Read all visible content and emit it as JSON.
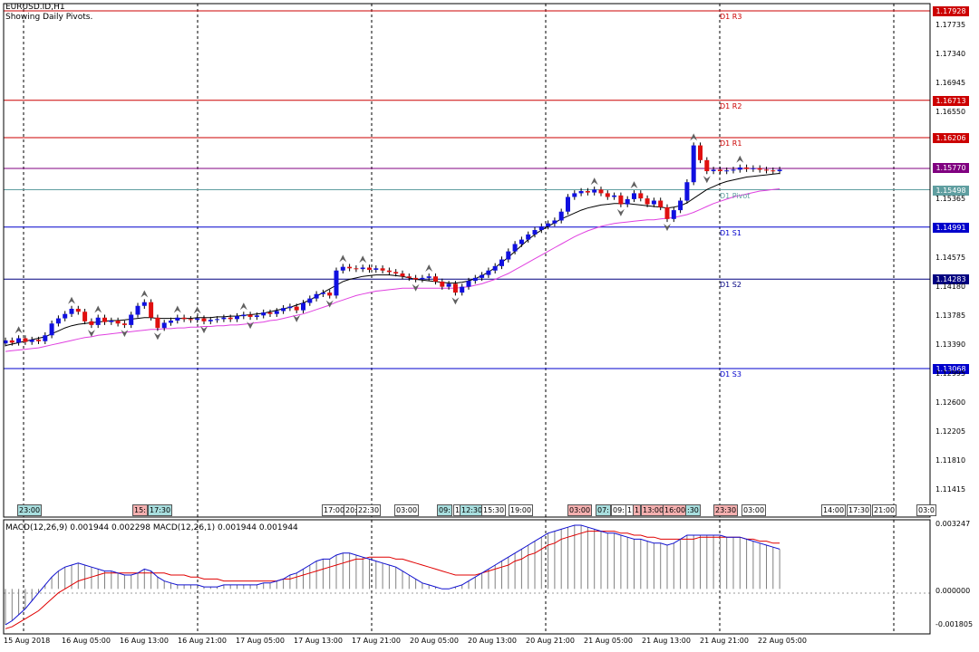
{
  "chart": {
    "symbol_line": "EURUSD.ID,H1",
    "subtitle": "Showing Daily Pivots.",
    "current_price": "1.15770",
    "pivots": [
      {
        "label": "D1 R3",
        "value": "1.17928",
        "color": "#cc0000"
      },
      {
        "label": "D1 R2",
        "value": "1.16713",
        "color": "#cc0000"
      },
      {
        "label": "D1 R1",
        "value": "1.16206",
        "color": "#cc0000"
      },
      {
        "label": "D1 Pivot",
        "value": "1.15498",
        "color": "#5f9ea0"
      },
      {
        "label": "D1 S1",
        "value": "1.14991",
        "color": "#0000cc"
      },
      {
        "label": "D1 S2",
        "value": "1.14283",
        "color": "#000080"
      },
      {
        "label": "D1 S3",
        "value": "1.13068",
        "color": "#0000cc"
      }
    ],
    "price_axis": [
      "1.17735",
      "1.17340",
      "1.16945",
      "1.16550",
      "1.15365",
      "1.14575",
      "1.14180",
      "1.13785",
      "1.13390",
      "1.12995",
      "1.12600",
      "1.12205",
      "1.11810",
      "1.11415"
    ],
    "sessions": [
      {
        "text": "23:00",
        "color": "#a8dede"
      },
      {
        "text": "15:",
        "color": "#f4b0b0"
      },
      {
        "text": "17:30",
        "color": "#a8dede"
      },
      {
        "text": "17:00",
        "color": "#ffffff"
      },
      {
        "text": "20:",
        "color": "#ffffff"
      },
      {
        "text": "22:30",
        "color": "#ffffff"
      },
      {
        "text": "03:00",
        "color": "#ffffff"
      },
      {
        "text": "09:",
        "color": "#a8dede"
      },
      {
        "text": "1",
        "color": "#ffffff"
      },
      {
        "text": "12:30",
        "color": "#a8dede"
      },
      {
        "text": "15:30",
        "color": "#ffffff"
      },
      {
        "text": "19:00",
        "color": "#ffffff"
      },
      {
        "text": "03:00",
        "color": "#f4b0b0"
      },
      {
        "text": "07:",
        "color": "#a8dede"
      },
      {
        "text": "09:",
        "color": "#ffffff"
      },
      {
        "text": "1",
        "color": "#ffffff"
      },
      {
        "text": "1",
        "color": "#f4b0b0"
      },
      {
        "text": "13:00",
        "color": "#f4b0b0"
      },
      {
        "text": "16:00",
        "color": "#f4b0b0"
      },
      {
        "text": ":30",
        "color": "#a8dede"
      },
      {
        "text": "23:30",
        "color": "#f4b0b0"
      },
      {
        "text": "03:00",
        "color": "#ffffff"
      },
      {
        "text": "14:00",
        "color": "#ffffff"
      },
      {
        "text": "17:30",
        "color": "#ffffff"
      },
      {
        "text": "21:00",
        "color": "#ffffff"
      },
      {
        "text": "03:0",
        "color": "#ffffff"
      }
    ],
    "time_axis": [
      "15 Aug 2018",
      "16 Aug 05:00",
      "16 Aug 13:00",
      "16 Aug 21:00",
      "17 Aug 05:00",
      "17 Aug 13:00",
      "17 Aug 21:00",
      "20 Aug 05:00",
      "20 Aug 13:00",
      "20 Aug 21:00",
      "21 Aug 05:00",
      "21 Aug 13:00",
      "21 Aug 21:00",
      "22 Aug 05:00"
    ]
  },
  "macd": {
    "header": "MACD(12,26,9) 0.001944 0.002298 MACD(12,26,1) 0.001944 0.001944",
    "axis": [
      "0.003247",
      "0.000000",
      "-0.001805"
    ]
  },
  "chart_data": {
    "type": "candlestick",
    "ohlc_y_range": [
      1.11,
      1.1805
    ],
    "closes": [
      1.1345,
      1.1342,
      1.1348,
      1.1343,
      1.1346,
      1.1344,
      1.1352,
      1.1368,
      1.1375,
      1.1381,
      1.1388,
      1.1384,
      1.1371,
      1.1366,
      1.1376,
      1.137,
      1.1372,
      1.1368,
      1.1366,
      1.138,
      1.1392,
      1.1397,
      1.1376,
      1.1362,
      1.1369,
      1.1372,
      1.1376,
      1.1374,
      1.1373,
      1.1375,
      1.1371,
      1.1373,
      1.1374,
      1.1376,
      1.1374,
      1.1378,
      1.138,
      1.1377,
      1.1379,
      1.1383,
      1.1381,
      1.1385,
      1.1389,
      1.1391,
      1.1386,
      1.1396,
      1.1402,
      1.1408,
      1.141,
      1.1406,
      1.144,
      1.1445,
      1.1443,
      1.1442,
      1.1444,
      1.1441,
      1.1443,
      1.144,
      1.1438,
      1.1436,
      1.1432,
      1.143,
      1.1428,
      1.143,
      1.1432,
      1.1425,
      1.1418,
      1.1422,
      1.141,
      1.1418,
      1.1426,
      1.143,
      1.1434,
      1.144,
      1.1446,
      1.1455,
      1.1466,
      1.1476,
      1.1482,
      1.1489,
      1.1495,
      1.15,
      1.1504,
      1.1508,
      1.152,
      1.154,
      1.1545,
      1.1548,
      1.1546,
      1.155,
      1.1545,
      1.154,
      1.1542,
      1.153,
      1.1537,
      1.1545,
      1.1538,
      1.153,
      1.1535,
      1.1526,
      1.151,
      1.1522,
      1.1535,
      1.156,
      1.161,
      1.159,
      1.1575,
      1.1577,
      1.1575,
      1.1576,
      1.1577,
      1.158,
      1.1578,
      1.1579,
      1.1577,
      1.1576,
      1.1575,
      1.1577
    ],
    "ma_fast": [
      1.1338,
      1.134,
      1.1342,
      1.1344,
      1.1346,
      1.1348,
      1.135,
      1.1354,
      1.1358,
      1.1362,
      1.1365,
      1.1367,
      1.1368,
      1.1369,
      1.137,
      1.1371,
      1.1372,
      1.1372,
      1.1373,
      1.1374,
      1.1375,
      1.1376,
      1.1376,
      1.1375,
      1.1375,
      1.1375,
      1.1375,
      1.1375,
      1.1375,
      1.1376,
      1.1376,
      1.1376,
      1.1377,
      1.1377,
      1.1378,
      1.1378,
      1.1379,
      1.138,
      1.1381,
      1.1382,
      1.1384,
      1.1386,
      1.1388,
      1.139,
      1.1393,
      1.1396,
      1.14,
      1.1405,
      1.141,
      1.1415,
      1.142,
      1.1425,
      1.1428,
      1.143,
      1.1432,
      1.1433,
      1.1434,
      1.1434,
      1.1434,
      1.1433,
      1.1432,
      1.143,
      1.1428,
      1.1427,
      1.1426,
      1.1425,
      1.1424,
      1.1423,
      1.1423,
      1.1424,
      1.1426,
      1.1429,
      1.1433,
      1.1438,
      1.1444,
      1.1451,
      1.1458,
      1.1466,
      1.1474,
      1.1482,
      1.1489,
      1.1495,
      1.15,
      1.1505,
      1.151,
      1.1514,
      1.1518,
      1.1522,
      1.1525,
      1.1527,
      1.1529,
      1.153,
      1.1531,
      1.1531,
      1.1531,
      1.153,
      1.1529,
      1.1528,
      1.1527,
      1.1526,
      1.1525,
      1.1526,
      1.1528,
      1.1532,
      1.1538,
      1.1544,
      1.155,
      1.1554,
      1.1558,
      1.1561,
      1.1563,
      1.1565,
      1.1567,
      1.1568,
      1.1569,
      1.157,
      1.1571,
      1.1572
    ],
    "ma_slow": [
      1.133,
      1.1331,
      1.1332,
      1.1333,
      1.1334,
      1.1335,
      1.1337,
      1.1339,
      1.1341,
      1.1343,
      1.1345,
      1.1347,
      1.1349,
      1.135,
      1.1352,
      1.1353,
      1.1354,
      1.1355,
      1.1356,
      1.1357,
      1.1358,
      1.1359,
      1.136,
      1.136,
      1.1361,
      1.1361,
      1.1362,
      1.1362,
      1.1363,
      1.1363,
      1.1364,
      1.1364,
      1.1365,
      1.1365,
      1.1366,
      1.1366,
      1.1367,
      1.1368,
      1.1369,
      1.137,
      1.1372,
      1.1373,
      1.1375,
      1.1377,
      1.1379,
      1.1381,
      1.1384,
      1.1387,
      1.139,
      1.1393,
      1.1397,
      1.14,
      1.1403,
      1.1406,
      1.1408,
      1.141,
      1.1412,
      1.1413,
      1.1414,
      1.1415,
      1.1416,
      1.1416,
      1.1416,
      1.1416,
      1.1416,
      1.1416,
      1.1416,
      1.1416,
      1.1416,
      1.1417,
      1.1418,
      1.142,
      1.1422,
      1.1425,
      1.1428,
      1.1432,
      1.1436,
      1.1441,
      1.1446,
      1.1451,
      1.1456,
      1.1461,
      1.1466,
      1.1471,
      1.1476,
      1.1481,
      1.1486,
      1.149,
      1.1494,
      1.1497,
      1.15,
      1.1502,
      1.1504,
      1.1505,
      1.1506,
      1.1507,
      1.1508,
      1.1509,
      1.1509,
      1.151,
      1.1511,
      1.1512,
      1.1514,
      1.1516,
      1.1519,
      1.1523,
      1.1527,
      1.1531,
      1.1534,
      1.1537,
      1.154,
      1.1542,
      1.1544,
      1.1546,
      1.1548,
      1.1549,
      1.155,
      1.1551
    ],
    "macd_range": [
      -0.001805,
      0.003247
    ],
    "macd_line": [
      -0.0018,
      -0.0016,
      -0.0013,
      -0.001,
      -0.0006,
      -0.0002,
      0.0002,
      0.0006,
      0.0009,
      0.0011,
      0.0012,
      0.0013,
      0.0012,
      0.0011,
      0.001,
      0.0009,
      0.0009,
      0.0008,
      0.0007,
      0.0007,
      0.0008,
      0.001,
      0.0009,
      0.0006,
      0.0004,
      0.0003,
      0.0002,
      0.0002,
      0.0002,
      0.0002,
      0.0001,
      0.0001,
      0.0001,
      0.0002,
      0.0002,
      0.0002,
      0.0002,
      0.0002,
      0.0002,
      0.0003,
      0.0003,
      0.0004,
      0.0005,
      0.0007,
      0.0008,
      0.001,
      0.0012,
      0.0014,
      0.0015,
      0.0015,
      0.0017,
      0.0018,
      0.0018,
      0.0017,
      0.0016,
      0.0015,
      0.0014,
      0.0013,
      0.0012,
      0.0011,
      0.0009,
      0.0007,
      0.0005,
      0.0003,
      0.0002,
      0.0001,
      0.0,
      0.0,
      0.0001,
      0.0002,
      0.0004,
      0.0006,
      0.0008,
      0.001,
      0.0012,
      0.0014,
      0.0016,
      0.0018,
      0.002,
      0.0022,
      0.0024,
      0.0026,
      0.0028,
      0.0029,
      0.003,
      0.0031,
      0.0032,
      0.0032,
      0.0031,
      0.003,
      0.0029,
      0.0028,
      0.0028,
      0.0027,
      0.0026,
      0.0025,
      0.0025,
      0.0024,
      0.0023,
      0.0023,
      0.0022,
      0.0023,
      0.0025,
      0.0027,
      0.0027,
      0.0027,
      0.0027,
      0.0027,
      0.0027,
      0.0026,
      0.0026,
      0.0026,
      0.0025,
      0.0024,
      0.0023,
      0.0022,
      0.0021,
      0.002
    ],
    "macd_signal": [
      -0.002,
      -0.0019,
      -0.0017,
      -0.0015,
      -0.0013,
      -0.0011,
      -0.0008,
      -0.0005,
      -0.0002,
      0.0,
      0.0002,
      0.0004,
      0.0005,
      0.0006,
      0.0007,
      0.0008,
      0.0008,
      0.0008,
      0.0008,
      0.0008,
      0.0008,
      0.0008,
      0.0008,
      0.0008,
      0.0008,
      0.0007,
      0.0007,
      0.0007,
      0.0006,
      0.0006,
      0.0005,
      0.0005,
      0.0005,
      0.0004,
      0.0004,
      0.0004,
      0.0004,
      0.0004,
      0.0004,
      0.0004,
      0.0004,
      0.0004,
      0.0005,
      0.0005,
      0.0006,
      0.0007,
      0.0008,
      0.0009,
      0.001,
      0.0011,
      0.0012,
      0.0013,
      0.0014,
      0.0015,
      0.0015,
      0.0016,
      0.0016,
      0.0016,
      0.0016,
      0.0015,
      0.0015,
      0.0014,
      0.0013,
      0.0012,
      0.0011,
      0.001,
      0.0009,
      0.0008,
      0.0007,
      0.0007,
      0.0007,
      0.0007,
      0.0008,
      0.0009,
      0.001,
      0.0011,
      0.0012,
      0.0014,
      0.0015,
      0.0017,
      0.0018,
      0.002,
      0.0022,
      0.0023,
      0.0025,
      0.0026,
      0.0027,
      0.0028,
      0.0029,
      0.0029,
      0.0029,
      0.0029,
      0.0029,
      0.0028,
      0.0028,
      0.0027,
      0.0027,
      0.0026,
      0.0026,
      0.0025,
      0.0025,
      0.0025,
      0.0025,
      0.0025,
      0.0025,
      0.0026,
      0.0026,
      0.0026,
      0.0026,
      0.0026,
      0.0026,
      0.0026,
      0.0025,
      0.0025,
      0.0024,
      0.0024,
      0.0023,
      0.0023
    ]
  }
}
